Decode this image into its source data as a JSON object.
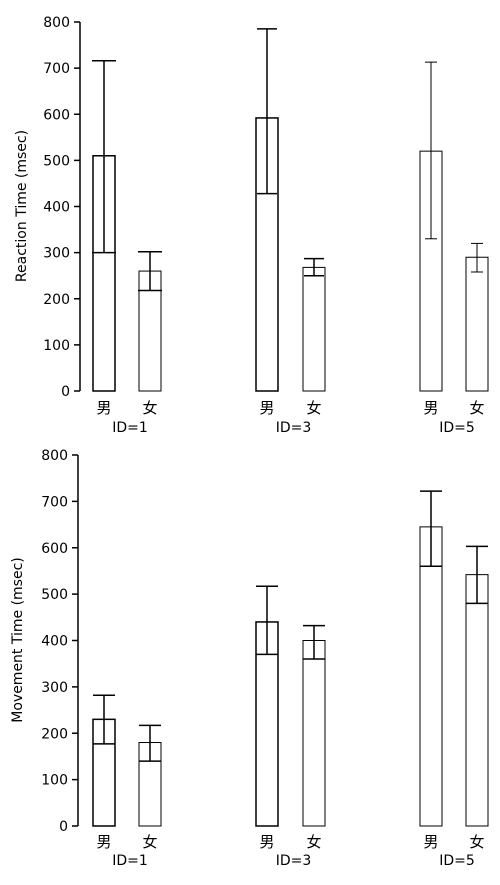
{
  "chart_data": [
    {
      "type": "bar",
      "ylabel": "Reaction Time (msec)",
      "ylim": [
        0,
        800
      ],
      "yticks": [
        0,
        100,
        200,
        300,
        400,
        500,
        600,
        700,
        800
      ],
      "groups": [
        {
          "label": "ID=1",
          "bars": [
            {
              "category": "男",
              "value": 510,
              "err_low": 300,
              "err_high": 716
            },
            {
              "category": "女",
              "value": 260,
              "err_low": 218,
              "err_high": 302
            }
          ]
        },
        {
          "label": "ID=3",
          "bars": [
            {
              "category": "男",
              "value": 592,
              "err_low": 428,
              "err_high": 785
            },
            {
              "category": "女",
              "value": 268,
              "err_low": 250,
              "err_high": 287
            }
          ]
        },
        {
          "label": "ID=5",
          "bars": [
            {
              "category": "男",
              "value": 520,
              "err_low": 330,
              "err_high": 713
            },
            {
              "category": "女",
              "value": 290,
              "err_low": 258,
              "err_high": 320
            }
          ]
        }
      ]
    },
    {
      "type": "bar",
      "ylabel": "Movement Time (msec)",
      "ylim": [
        0,
        800
      ],
      "yticks": [
        0,
        100,
        200,
        300,
        400,
        500,
        600,
        700,
        800
      ],
      "groups": [
        {
          "label": "ID=1",
          "bars": [
            {
              "category": "男",
              "value": 230,
              "err_low": 177,
              "err_high": 282
            },
            {
              "category": "女",
              "value": 180,
              "err_low": 140,
              "err_high": 217
            }
          ]
        },
        {
          "label": "ID=3",
          "bars": [
            {
              "category": "男",
              "value": 440,
              "err_low": 370,
              "err_high": 517
            },
            {
              "category": "女",
              "value": 400,
              "err_low": 360,
              "err_high": 432
            }
          ]
        },
        {
          "label": "ID=5",
          "bars": [
            {
              "category": "男",
              "value": 645,
              "err_low": 560,
              "err_high": 722
            },
            {
              "category": "女",
              "value": 542,
              "err_low": 480,
              "err_high": 603
            }
          ]
        }
      ]
    }
  ]
}
